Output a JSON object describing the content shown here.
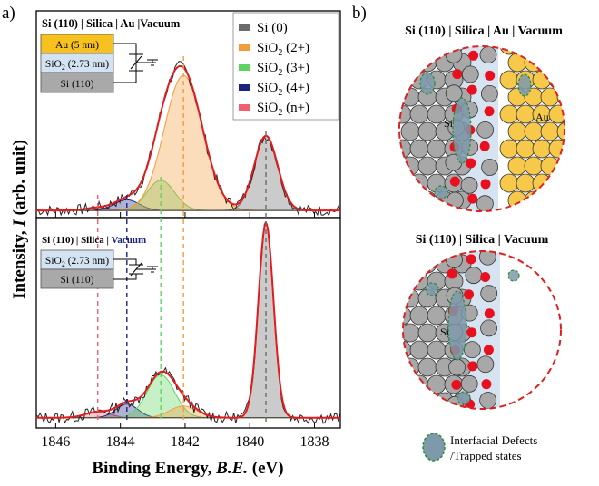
{
  "panel_labels": {
    "a": "a)",
    "b": "b)"
  },
  "chart_data": {
    "type": "line",
    "title": "",
    "xlabel_main": "Binding Energy, ",
    "xlabel_italic": "B.E.",
    "xlabel_unit": " (eV)",
    "ylabel_main": "Intensity, ",
    "ylabel_italic": "I",
    "ylabel_unit": " (arb. unit)",
    "xlim": [
      1846.6,
      1837.2
    ],
    "x_ticks": [
      1846,
      1844,
      1842,
      1840,
      1838
    ],
    "legend": [
      {
        "label": "Si (0)",
        "color": "#6b6b6b"
      },
      {
        "label": "SiO",
        "sub": "2",
        "suffix": " (2+)",
        "color": "#f39c3c"
      },
      {
        "label": "SiO",
        "sub": "2",
        "suffix": " (3+)",
        "color": "#5fd35f"
      },
      {
        "label": "SiO",
        "sub": "2",
        "suffix": " (4+)",
        "color": "#1a237e"
      },
      {
        "label": "SiO",
        "sub": "2",
        "suffix": " (n+)",
        "color": "#f06070"
      }
    ],
    "reference_lines": [
      {
        "x": 1844.7,
        "color": "#f06070"
      },
      {
        "x": 1843.8,
        "color": "#1a237e"
      },
      {
        "x": 1842.75,
        "color": "#5fd35f"
      },
      {
        "x": 1842.05,
        "color": "#f39c3c"
      },
      {
        "x": 1839.5,
        "color": "#6b6b6b"
      }
    ],
    "series": [
      {
        "name": "Si (110) | Silica | Au | Vacuum",
        "title_parts": [
          "Si (110) | Silica | Au |Vacuum"
        ],
        "baseline": 0.02,
        "peaks": [
          {
            "component": "SiO2 (n+)",
            "center": 1844.7,
            "height": 0.015,
            "fwhm": 0.9,
            "color": "#f06070"
          },
          {
            "component": "SiO2 (4+)",
            "center": 1843.8,
            "height": 0.06,
            "fwhm": 0.9,
            "color": "#1a237e"
          },
          {
            "component": "SiO2 (3+)",
            "center": 1842.75,
            "height": 0.17,
            "fwhm": 1.0,
            "color": "#5fd35f"
          },
          {
            "component": "SiO2 (2+)",
            "center": 1842.05,
            "height": 0.76,
            "fwhm": 1.4,
            "color": "#f39c3c"
          },
          {
            "component": "Si (0)",
            "center": 1839.5,
            "height": 0.42,
            "fwhm": 0.85,
            "color": "#6b6b6b"
          }
        ],
        "inset_layers": [
          {
            "label": "Au (5 nm)",
            "fill": "#f7c21f"
          },
          {
            "label": "SiO",
            "sub": "2",
            "suffix": " (2.73 nm)",
            "fill": "#d4e3f1"
          },
          {
            "label": "Si (110)",
            "fill": "#a9a9a9"
          }
        ]
      },
      {
        "name": "Si (110) | Silica | Vacuum",
        "title_black": "Si (110) | Silica | ",
        "title_blue": "Vacuum",
        "baseline": 0.02,
        "peaks": [
          {
            "component": "SiO2 (n+)",
            "center": 1844.7,
            "height": 0.03,
            "fwhm": 0.9,
            "color": "#f06070"
          },
          {
            "component": "SiO2 (4+)",
            "center": 1843.8,
            "height": 0.07,
            "fwhm": 0.8,
            "color": "#1a237e"
          },
          {
            "component": "SiO2 (3+)",
            "center": 1842.75,
            "height": 0.22,
            "fwhm": 1.0,
            "color": "#5fd35f"
          },
          {
            "component": "SiO2 (2+)",
            "center": 1842.05,
            "height": 0.06,
            "fwhm": 1.0,
            "color": "#f39c3c"
          },
          {
            "component": "Si (0)",
            "center": 1839.5,
            "height": 1.0,
            "fwhm": 0.55,
            "color": "#6b6b6b"
          }
        ],
        "inset_layers": [
          {
            "label": "SiO",
            "sub": "2",
            "suffix": " (2.73 nm)",
            "fill": "#d4e3f1"
          },
          {
            "label": "Si (110)",
            "fill": "#a9a9a9"
          }
        ]
      }
    ]
  },
  "schematic": {
    "top_title": "Si (110) | Silica | Au | Vacuum",
    "bottom_title": "Si (110) | Silica | Vacuum",
    "si_label": "Si",
    "au_label": "Au",
    "legend_line1": "Interfacial Defects",
    "legend_line2": "/Trapped states",
    "colors": {
      "si": "#a8a8a8",
      "au": "#f7c94a",
      "oxygen": "#e8101e",
      "silica": "#d6e4f2",
      "defect": "#7d99ab",
      "border": "#e02020"
    }
  }
}
